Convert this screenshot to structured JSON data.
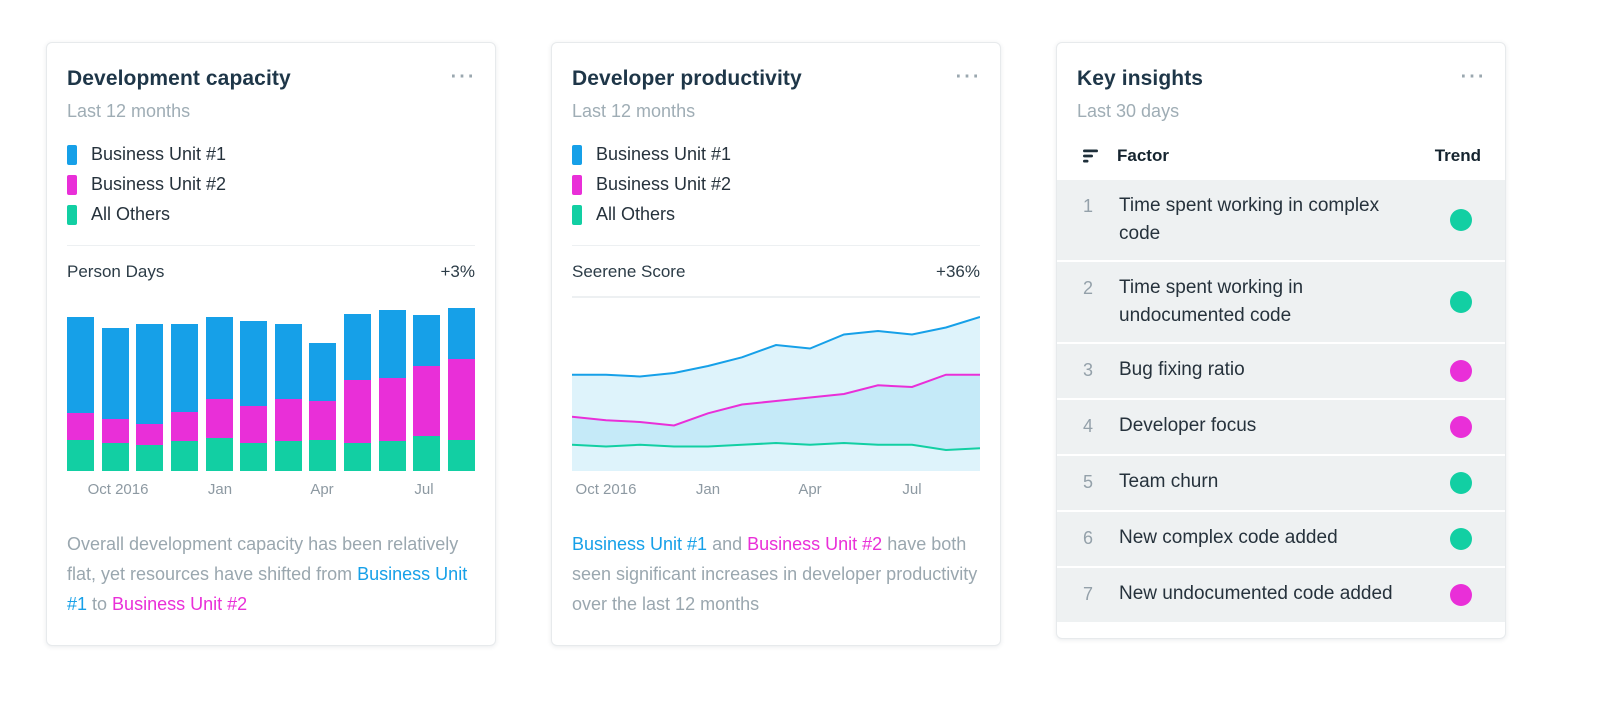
{
  "colors": {
    "blue": "#16a0e8",
    "magenta": "#e92fd8",
    "teal": "#12cfa3",
    "muted": "#9aa7af"
  },
  "icons": {
    "more_options": "⋯",
    "sort": "sort-descending"
  },
  "capacity_card": {
    "title": "Development capacity",
    "subtitle": "Last 12 months",
    "legend": [
      {
        "label": "Business Unit #1",
        "color": "blue"
      },
      {
        "label": "Business Unit #2",
        "color": "magenta"
      },
      {
        "label": "All Others",
        "color": "teal"
      }
    ],
    "metric_label": "Person Days",
    "metric_change": "+3%",
    "description": [
      {
        "text": "Overall development capacity has been relatively flat, yet resources have shifted from ",
        "color": "muted"
      },
      {
        "text": "Business Unit #1",
        "color": "blue"
      },
      {
        "text": " to ",
        "color": "muted"
      },
      {
        "text": "Business Unit #2",
        "color": "magenta"
      }
    ]
  },
  "productivity_card": {
    "title": "Developer productivity",
    "subtitle": "Last 12 months",
    "legend": [
      {
        "label": "Business Unit #1",
        "color": "blue"
      },
      {
        "label": "Business Unit #2",
        "color": "magenta"
      },
      {
        "label": "All Others",
        "color": "teal"
      }
    ],
    "metric_label": "Seerene Score",
    "metric_change": "+36%",
    "description": [
      {
        "text": "Business Unit #1",
        "color": "blue"
      },
      {
        "text": " and ",
        "color": "muted"
      },
      {
        "text": "Business Unit #2",
        "color": "magenta"
      },
      {
        "text": " have both seen significant increases in developer productivity over the last 12 months",
        "color": "muted"
      }
    ]
  },
  "insights_card": {
    "title": "Key insights",
    "subtitle": "Last 30 days",
    "factor_header": "Factor",
    "trend_header": "Trend",
    "rows": [
      {
        "rank": "1",
        "factor": "Time spent working in complex code",
        "trend_color": "teal"
      },
      {
        "rank": "2",
        "factor": "Time spent working in undocumented code",
        "trend_color": "teal"
      },
      {
        "rank": "3",
        "factor": "Bug fixing ratio",
        "trend_color": "magenta"
      },
      {
        "rank": "4",
        "factor": "Developer focus",
        "trend_color": "magenta"
      },
      {
        "rank": "5",
        "factor": "Team churn",
        "trend_color": "teal"
      },
      {
        "rank": "6",
        "factor": "New complex code added",
        "trend_color": "teal"
      },
      {
        "rank": "7",
        "factor": "New undocumented code added",
        "trend_color": "magenta"
      }
    ]
  },
  "chart_data": [
    {
      "type": "bar",
      "stacked": true,
      "title": "Development capacity",
      "ylabel": "Person Days",
      "change": "+3%",
      "ylim": [
        0,
        100
      ],
      "x_tick_labels": [
        {
          "index": 1,
          "label": "Oct 2016"
        },
        {
          "index": 4,
          "label": "Jan"
        },
        {
          "index": 7,
          "label": "Apr"
        },
        {
          "index": 10,
          "label": "Jul"
        }
      ],
      "series": [
        {
          "name": "All Others",
          "color": "teal",
          "values": [
            18,
            16,
            15,
            17,
            19,
            16,
            17,
            18,
            16,
            17,
            20,
            18
          ]
        },
        {
          "name": "Business Unit #2",
          "color": "magenta",
          "values": [
            15,
            14,
            12,
            17,
            22,
            21,
            24,
            22,
            36,
            36,
            40,
            46
          ]
        },
        {
          "name": "Business Unit #1",
          "color": "blue",
          "values": [
            55,
            52,
            57,
            50,
            47,
            49,
            43,
            33,
            38,
            39,
            29,
            29
          ]
        }
      ]
    },
    {
      "type": "area",
      "title": "Developer productivity",
      "ylabel": "Seerene Score",
      "change": "+36%",
      "ylim": [
        0,
        100
      ],
      "x_tick_labels": [
        {
          "index": 1,
          "label": "Oct 2016"
        },
        {
          "index": 4,
          "label": "Jan"
        },
        {
          "index": 7,
          "label": "Apr"
        },
        {
          "index": 10,
          "label": "Jul"
        }
      ],
      "series": [
        {
          "name": "Business Unit #1",
          "color": "blue",
          "values": [
            55,
            55,
            54,
            56,
            60,
            65,
            72,
            70,
            78,
            80,
            78,
            82,
            88
          ]
        },
        {
          "name": "Business Unit #2",
          "color": "magenta",
          "values": [
            31,
            29,
            28,
            26,
            33,
            38,
            40,
            42,
            44,
            49,
            48,
            55,
            55
          ]
        },
        {
          "name": "All Others",
          "color": "teal",
          "values": [
            15,
            14,
            15,
            14,
            14,
            15,
            16,
            15,
            16,
            15,
            15,
            12,
            13
          ]
        }
      ]
    }
  ]
}
